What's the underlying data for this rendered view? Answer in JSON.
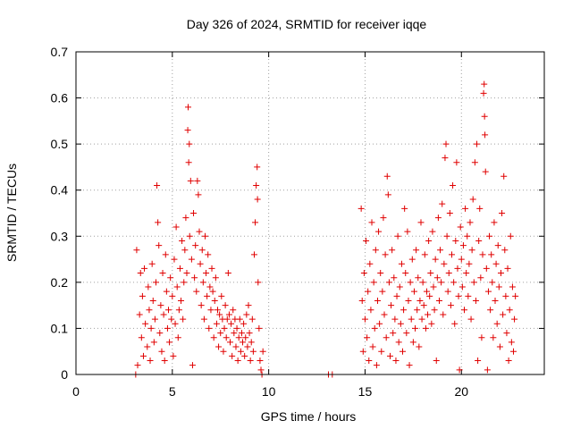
{
  "chart_data": {
    "type": "scatter",
    "title": "Day 326 of 2024, SRMTID for receiver iqqe",
    "xlabel": "GPS time / hours",
    "ylabel": "SRMTID / TECUs",
    "xlim": [
      0,
      24.3
    ],
    "ylim": [
      0,
      0.7
    ],
    "x_ticks": [
      0,
      5,
      10,
      15,
      20
    ],
    "x_tick_labels": [
      "0",
      "5",
      "10",
      "15",
      "20"
    ],
    "y_ticks": [
      0,
      0.1,
      0.2,
      0.3,
      0.4,
      0.5,
      0.6,
      0.7
    ],
    "y_tick_labels": [
      "0",
      "0.1",
      "0.2",
      "0.3",
      "0.4",
      "0.5",
      "0.6",
      "0.7"
    ],
    "grid": true,
    "marker": "+",
    "marker_color": "#e00000",
    "series": [
      {
        "name": "SRMTID",
        "points": [
          [
            3.1,
            0.0
          ],
          [
            3.15,
            0.27
          ],
          [
            3.2,
            0.02
          ],
          [
            3.3,
            0.13
          ],
          [
            3.35,
            0.22
          ],
          [
            3.4,
            0.08
          ],
          [
            3.45,
            0.17
          ],
          [
            3.5,
            0.04
          ],
          [
            3.55,
            0.23
          ],
          [
            3.6,
            0.11
          ],
          [
            3.7,
            0.06
          ],
          [
            3.75,
            0.19
          ],
          [
            3.8,
            0.14
          ],
          [
            3.85,
            0.03
          ],
          [
            3.9,
            0.1
          ],
          [
            3.95,
            0.24
          ],
          [
            4.0,
            0.16
          ],
          [
            4.05,
            0.07
          ],
          [
            4.1,
            0.12
          ],
          [
            4.15,
            0.2
          ],
          [
            4.2,
            0.41
          ],
          [
            4.25,
            0.33
          ],
          [
            4.3,
            0.28
          ],
          [
            4.35,
            0.09
          ],
          [
            4.4,
            0.15
          ],
          [
            4.45,
            0.05
          ],
          [
            4.5,
            0.22
          ],
          [
            4.55,
            0.13
          ],
          [
            4.6,
            0.03
          ],
          [
            4.65,
            0.26
          ],
          [
            4.7,
            0.18
          ],
          [
            4.75,
            0.1
          ],
          [
            4.8,
            0.14
          ],
          [
            4.85,
            0.07
          ],
          [
            4.9,
            0.21
          ],
          [
            4.95,
            0.12
          ],
          [
            5.0,
            0.17
          ],
          [
            5.05,
            0.04
          ],
          [
            5.1,
            0.25
          ],
          [
            5.15,
            0.11
          ],
          [
            5.2,
            0.32
          ],
          [
            5.25,
            0.19
          ],
          [
            5.3,
            0.08
          ],
          [
            5.35,
            0.14
          ],
          [
            5.4,
            0.23
          ],
          [
            5.45,
            0.16
          ],
          [
            5.5,
            0.29
          ],
          [
            5.55,
            0.12
          ],
          [
            5.6,
            0.2
          ],
          [
            5.65,
            0.27
          ],
          [
            5.7,
            0.34
          ],
          [
            5.75,
            0.22
          ],
          [
            5.8,
            0.53
          ],
          [
            5.82,
            0.58
          ],
          [
            5.85,
            0.46
          ],
          [
            5.88,
            0.5
          ],
          [
            5.9,
            0.3
          ],
          [
            5.95,
            0.42
          ],
          [
            6.0,
            0.25
          ],
          [
            6.05,
            0.02
          ],
          [
            6.1,
            0.35
          ],
          [
            6.15,
            0.21
          ],
          [
            6.2,
            0.28
          ],
          [
            6.25,
            0.18
          ],
          [
            6.3,
            0.42
          ],
          [
            6.35,
            0.39
          ],
          [
            6.4,
            0.31
          ],
          [
            6.45,
            0.24
          ],
          [
            6.5,
            0.15
          ],
          [
            6.55,
            0.27
          ],
          [
            6.6,
            0.2
          ],
          [
            6.65,
            0.12
          ],
          [
            6.7,
            0.3
          ],
          [
            6.75,
            0.22
          ],
          [
            6.8,
            0.17
          ],
          [
            6.85,
            0.26
          ],
          [
            6.9,
            0.1
          ],
          [
            6.95,
            0.19
          ],
          [
            7.0,
            0.14
          ],
          [
            7.05,
            0.23
          ],
          [
            7.1,
            0.18
          ],
          [
            7.15,
            0.08
          ],
          [
            7.2,
            0.16
          ],
          [
            7.25,
            0.21
          ],
          [
            7.3,
            0.11
          ],
          [
            7.35,
            0.14
          ],
          [
            7.4,
            0.06
          ],
          [
            7.45,
            0.13
          ],
          [
            7.5,
            0.09
          ],
          [
            7.55,
            0.17
          ],
          [
            7.6,
            0.12
          ],
          [
            7.65,
            0.05
          ],
          [
            7.7,
            0.1
          ],
          [
            7.75,
            0.15
          ],
          [
            7.8,
            0.08
          ],
          [
            7.85,
            0.12
          ],
          [
            7.9,
            0.22
          ],
          [
            7.95,
            0.13
          ],
          [
            8.0,
            0.07
          ],
          [
            8.05,
            0.11
          ],
          [
            8.1,
            0.04
          ],
          [
            8.15,
            0.14
          ],
          [
            8.2,
            0.09
          ],
          [
            8.25,
            0.12
          ],
          [
            8.3,
            0.06
          ],
          [
            8.35,
            0.1
          ],
          [
            8.4,
            0.03
          ],
          [
            8.45,
            0.08
          ],
          [
            8.5,
            0.12
          ],
          [
            8.55,
            0.05
          ],
          [
            8.6,
            0.09
          ],
          [
            8.65,
            0.07
          ],
          [
            8.7,
            0.11
          ],
          [
            8.75,
            0.04
          ],
          [
            8.8,
            0.08
          ],
          [
            8.85,
            0.13
          ],
          [
            8.9,
            0.06
          ],
          [
            8.95,
            0.15
          ],
          [
            9.0,
            0.09
          ],
          [
            9.05,
            0.03
          ],
          [
            9.1,
            0.07
          ],
          [
            9.15,
            0.12
          ],
          [
            9.2,
            0.05
          ],
          [
            9.25,
            0.26
          ],
          [
            9.3,
            0.33
          ],
          [
            9.35,
            0.41
          ],
          [
            9.4,
            0.45
          ],
          [
            9.42,
            0.38
          ],
          [
            9.45,
            0.2
          ],
          [
            9.5,
            0.1
          ],
          [
            9.55,
            0.03
          ],
          [
            9.6,
            0.01
          ],
          [
            9.65,
            0.0
          ],
          [
            9.7,
            0.05
          ],
          [
            13.1,
            0.0
          ],
          [
            13.3,
            0.0
          ],
          [
            14.8,
            0.36
          ],
          [
            14.85,
            0.16
          ],
          [
            14.9,
            0.05
          ],
          [
            14.95,
            0.22
          ],
          [
            15.0,
            0.12
          ],
          [
            15.05,
            0.29
          ],
          [
            15.1,
            0.08
          ],
          [
            15.15,
            0.18
          ],
          [
            15.2,
            0.03
          ],
          [
            15.25,
            0.24
          ],
          [
            15.3,
            0.14
          ],
          [
            15.35,
            0.33
          ],
          [
            15.4,
            0.06
          ],
          [
            15.45,
            0.2
          ],
          [
            15.5,
            0.1
          ],
          [
            15.55,
            0.27
          ],
          [
            15.6,
            0.02
          ],
          [
            15.65,
            0.16
          ],
          [
            15.7,
            0.31
          ],
          [
            15.75,
            0.11
          ],
          [
            15.8,
            0.22
          ],
          [
            15.85,
            0.05
          ],
          [
            15.9,
            0.18
          ],
          [
            15.95,
            0.34
          ],
          [
            16.0,
            0.13
          ],
          [
            16.05,
            0.26
          ],
          [
            16.1,
            0.08
          ],
          [
            16.15,
            0.43
          ],
          [
            16.2,
            0.39
          ],
          [
            16.25,
            0.2
          ],
          [
            16.3,
            0.04
          ],
          [
            16.35,
            0.15
          ],
          [
            16.4,
            0.27
          ],
          [
            16.45,
            0.09
          ],
          [
            16.5,
            0.21
          ],
          [
            16.55,
            0.12
          ],
          [
            16.6,
            0.03
          ],
          [
            16.65,
            0.17
          ],
          [
            16.7,
            0.3
          ],
          [
            16.75,
            0.07
          ],
          [
            16.8,
            0.19
          ],
          [
            16.85,
            0.11
          ],
          [
            16.9,
            0.24
          ],
          [
            16.95,
            0.05
          ],
          [
            17.0,
            0.14
          ],
          [
            17.05,
            0.36
          ],
          [
            17.1,
            0.22
          ],
          [
            17.15,
            0.09
          ],
          [
            17.2,
            0.31
          ],
          [
            17.25,
            0.16
          ],
          [
            17.3,
            0.02
          ],
          [
            17.35,
            0.2
          ],
          [
            17.4,
            0.12
          ],
          [
            17.45,
            0.25
          ],
          [
            17.5,
            0.07
          ],
          [
            17.55,
            0.18
          ],
          [
            17.6,
            0.1
          ],
          [
            17.65,
            0.27
          ],
          [
            17.7,
            0.14
          ],
          [
            17.75,
            0.21
          ],
          [
            17.8,
            0.06
          ],
          [
            17.85,
            0.16
          ],
          [
            17.9,
            0.33
          ],
          [
            17.95,
            0.12
          ],
          [
            18.0,
            0.2
          ],
          [
            18.05,
            0.15
          ],
          [
            18.1,
            0.26
          ],
          [
            18.15,
            0.1
          ],
          [
            18.2,
            0.18
          ],
          [
            18.25,
            0.13
          ],
          [
            18.3,
            0.29
          ],
          [
            18.35,
            0.17
          ],
          [
            18.4,
            0.22
          ],
          [
            18.45,
            0.11
          ],
          [
            18.5,
            0.31
          ],
          [
            18.55,
            0.19
          ],
          [
            18.6,
            0.14
          ],
          [
            18.65,
            0.25
          ],
          [
            18.7,
            0.03
          ],
          [
            18.75,
            0.21
          ],
          [
            18.8,
            0.34
          ],
          [
            18.85,
            0.16
          ],
          [
            18.9,
            0.27
          ],
          [
            18.95,
            0.2
          ],
          [
            19.0,
            0.37
          ],
          [
            19.05,
            0.13
          ],
          [
            19.1,
            0.24
          ],
          [
            19.15,
            0.47
          ],
          [
            19.2,
            0.5
          ],
          [
            19.25,
            0.3
          ],
          [
            19.3,
            0.18
          ],
          [
            19.35,
            0.22
          ],
          [
            19.4,
            0.35
          ],
          [
            19.45,
            0.15
          ],
          [
            19.5,
            0.26
          ],
          [
            19.55,
            0.41
          ],
          [
            19.6,
            0.2
          ],
          [
            19.65,
            0.11
          ],
          [
            19.7,
            0.29
          ],
          [
            19.75,
            0.46
          ],
          [
            19.8,
            0.23
          ],
          [
            19.85,
            0.17
          ],
          [
            19.9,
            0.01
          ],
          [
            19.95,
            0.32
          ],
          [
            20.0,
            0.25
          ],
          [
            20.05,
            0.19
          ],
          [
            20.1,
            0.28
          ],
          [
            20.15,
            0.14
          ],
          [
            20.2,
            0.36
          ],
          [
            20.25,
            0.22
          ],
          [
            20.3,
            0.3
          ],
          [
            20.35,
            0.17
          ],
          [
            20.4,
            0.24
          ],
          [
            20.45,
            0.33
          ],
          [
            20.5,
            0.12
          ],
          [
            20.55,
            0.27
          ],
          [
            20.6,
            0.38
          ],
          [
            20.65,
            0.2
          ],
          [
            20.7,
            0.46
          ],
          [
            20.75,
            0.16
          ],
          [
            20.8,
            0.5
          ],
          [
            20.85,
            0.03
          ],
          [
            20.9,
            0.29
          ],
          [
            20.95,
            0.36
          ],
          [
            21.0,
            0.21
          ],
          [
            21.05,
            0.08
          ],
          [
            21.1,
            0.26
          ],
          [
            21.15,
            0.61
          ],
          [
            21.18,
            0.63
          ],
          [
            21.2,
            0.56
          ],
          [
            21.22,
            0.52
          ],
          [
            21.25,
            0.44
          ],
          [
            21.3,
            0.23
          ],
          [
            21.35,
            0.01
          ],
          [
            21.4,
            0.18
          ],
          [
            21.45,
            0.3
          ],
          [
            21.5,
            0.14
          ],
          [
            21.55,
            0.26
          ],
          [
            21.6,
            0.2
          ],
          [
            21.65,
            0.08
          ],
          [
            21.7,
            0.33
          ],
          [
            21.75,
            0.16
          ],
          [
            21.8,
            0.24
          ],
          [
            21.85,
            0.11
          ],
          [
            21.9,
            0.28
          ],
          [
            21.95,
            0.19
          ],
          [
            22.0,
            0.06
          ],
          [
            22.05,
            0.22
          ],
          [
            22.1,
            0.35
          ],
          [
            22.15,
            0.13
          ],
          [
            22.2,
            0.43
          ],
          [
            22.25,
            0.27
          ],
          [
            22.3,
            0.17
          ],
          [
            22.35,
            0.09
          ],
          [
            22.4,
            0.23
          ],
          [
            22.45,
            0.03
          ],
          [
            22.5,
            0.14
          ],
          [
            22.55,
            0.3
          ],
          [
            22.6,
            0.07
          ],
          [
            22.65,
            0.19
          ],
          [
            22.7,
            0.05
          ],
          [
            22.75,
            0.12
          ],
          [
            22.8,
            0.17
          ]
        ]
      }
    ]
  }
}
